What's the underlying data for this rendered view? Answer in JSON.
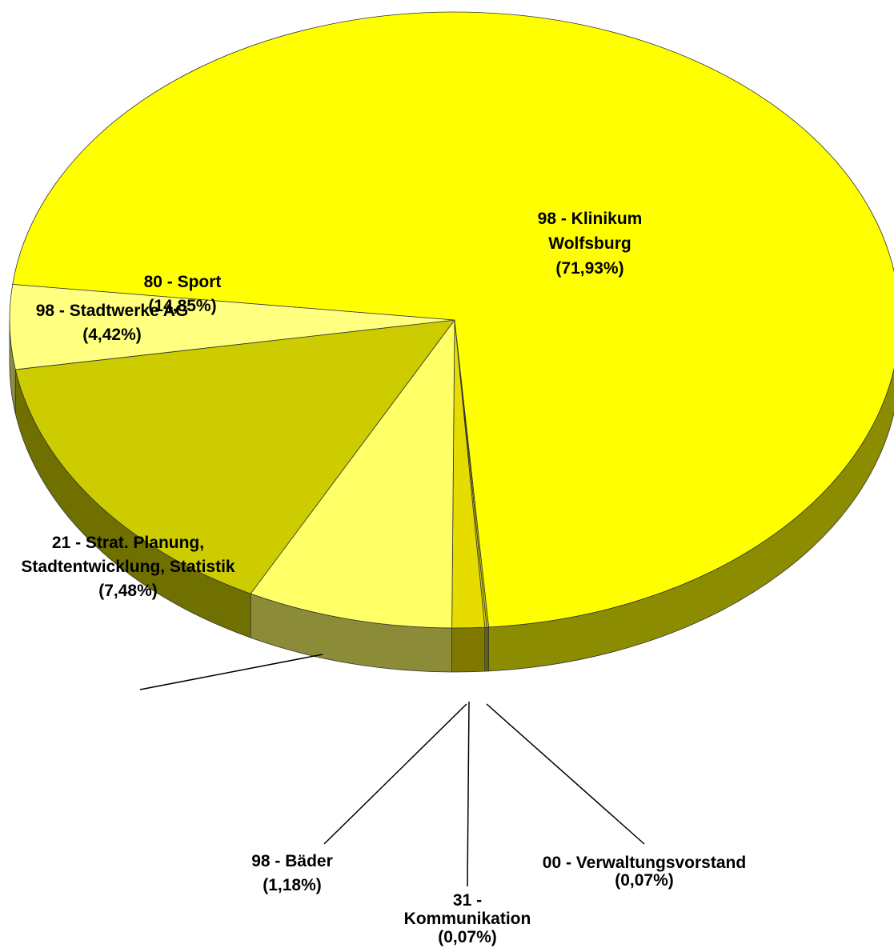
{
  "chart_data": {
    "type": "pie",
    "categories": [
      "00 - Verwaltungsvorstand",
      "31 - Kommunikation",
      "98 - Bäder",
      "21 - Strat. Planung, Stadtentwicklung, Statistik",
      "80 - Sport",
      "98 - Stadtwerke AG",
      "98 - Klinikum Wolfsburg"
    ],
    "values": [
      0.07,
      0.07,
      1.18,
      7.48,
      14.85,
      4.42,
      71.93
    ],
    "value_labels": [
      "(0,07%)",
      "(0,07%)",
      "(1,18%)",
      "(7,48%)",
      "(14,85%)",
      "(4,42%)",
      "(71,93%)"
    ],
    "colors": [
      "#cccc00",
      "#e0d800",
      "#e6dc00",
      "#ffff66",
      "#cccc00",
      "#ffff80",
      "#ffff00"
    ]
  }
}
